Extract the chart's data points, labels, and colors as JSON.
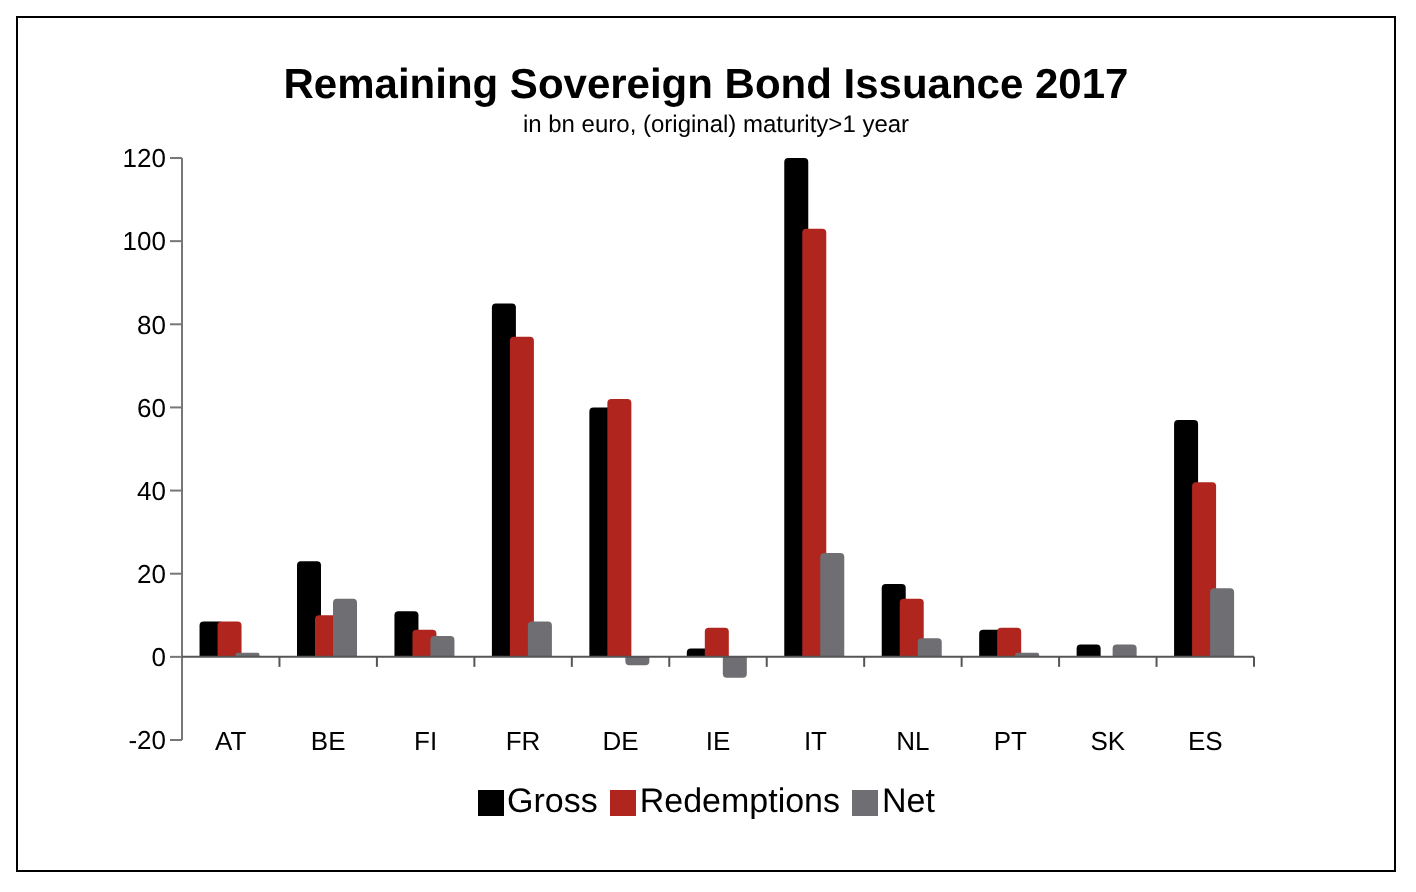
{
  "chart_data": {
    "type": "bar",
    "title": "Remaining Sovereign Bond Issuance 2017",
    "subtitle": "in bn euro, (original) maturity>1 year",
    "categories": [
      "AT",
      "BE",
      "FI",
      "FR",
      "DE",
      "IE",
      "IT",
      "NL",
      "PT",
      "SK",
      "ES"
    ],
    "series": [
      {
        "name": "Gross",
        "color": "#000000",
        "values": [
          8.5,
          23,
          11,
          85,
          60,
          2,
          120,
          17.5,
          6.5,
          3,
          57
        ]
      },
      {
        "name": "Redemptions",
        "color": "#b0261e",
        "values": [
          8.5,
          10,
          6.5,
          77,
          62,
          7,
          103,
          14,
          7,
          0,
          42
        ]
      },
      {
        "name": "Net",
        "color": "#6e6e73",
        "values": [
          1,
          14,
          5,
          8.5,
          -2,
          -5,
          25,
          4.5,
          1,
          3,
          16.5
        ]
      }
    ],
    "ylim": [
      -20,
      120
    ],
    "yticks": [
      -20,
      0,
      20,
      40,
      60,
      80,
      100,
      120
    ],
    "legend": "bottom"
  }
}
